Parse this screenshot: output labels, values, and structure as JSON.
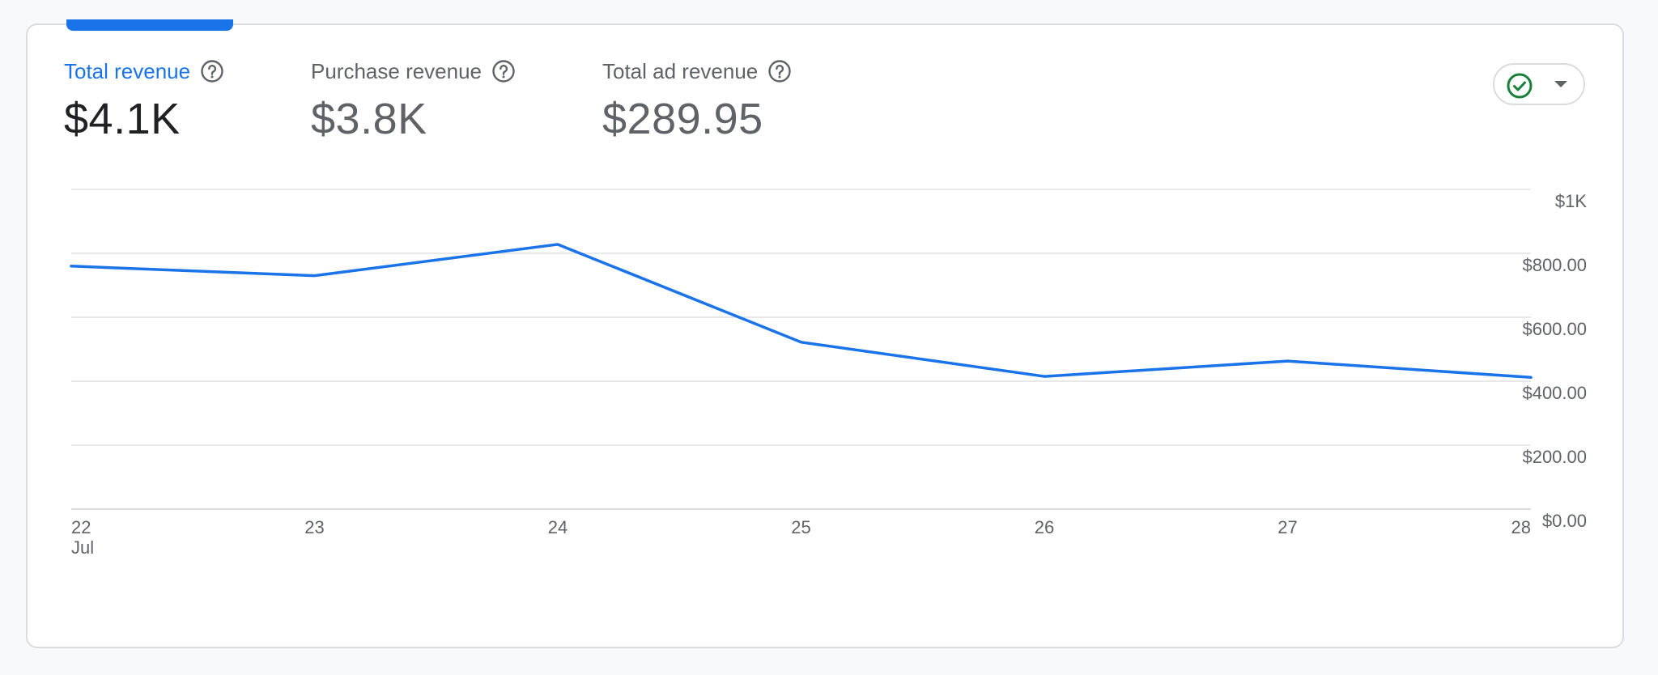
{
  "metrics": [
    {
      "label": "Total revenue",
      "value": "$4.1K",
      "active": true
    },
    {
      "label": "Purchase revenue",
      "value": "$3.8K",
      "active": false
    },
    {
      "label": "Total ad revenue",
      "value": "$289.95",
      "active": false
    }
  ],
  "compare_button": {
    "icon": "check-circle-icon",
    "dropdown_icon": "chevron-down-icon",
    "status_color": "#188038"
  },
  "colors": {
    "accent": "#1a73e8",
    "line": "#1a73e8",
    "grid": "#e0e0e0"
  },
  "chart_data": {
    "type": "line",
    "x": [
      "22",
      "23",
      "24",
      "25",
      "26",
      "27",
      "28"
    ],
    "x_sublabels": [
      "Jul",
      "",
      "",
      "",
      "",
      "",
      ""
    ],
    "series": [
      {
        "values": [
          760,
          730,
          828,
          522,
          415,
          463,
          412
        ]
      }
    ],
    "ylim": [
      0,
      1000
    ],
    "y_ticks": [
      0,
      200,
      400,
      600,
      800,
      1000
    ],
    "y_tick_labels": [
      "$0.00",
      "$200.00",
      "$400.00",
      "$600.00",
      "$800.00",
      "$1K"
    ],
    "y_axis_position": "right",
    "grid": true,
    "legend": "none"
  }
}
